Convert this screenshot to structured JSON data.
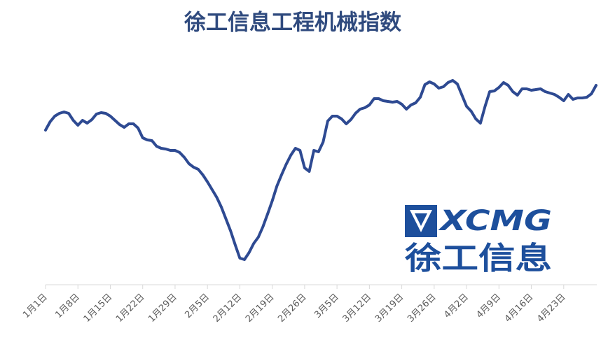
{
  "chart_data": {
    "type": "line",
    "title": "徐工信息工程机械指数",
    "categories": [
      "1月1日",
      null,
      null,
      null,
      null,
      null,
      null,
      "1月8日",
      null,
      null,
      null,
      null,
      null,
      null,
      "1月15日",
      null,
      null,
      null,
      null,
      null,
      null,
      "1月22日",
      null,
      null,
      null,
      null,
      null,
      null,
      "1月29日",
      null,
      null,
      null,
      null,
      null,
      null,
      "2月5日",
      null,
      null,
      null,
      null,
      null,
      null,
      "2月12日",
      null,
      null,
      null,
      null,
      null,
      null,
      "2月19日",
      null,
      null,
      null,
      null,
      null,
      null,
      "2月26日",
      null,
      null,
      null,
      null,
      null,
      null,
      "3月5日",
      null,
      null,
      null,
      null,
      null,
      null,
      "3月12日",
      null,
      null,
      null,
      null,
      null,
      null,
      "3月19日",
      null,
      null,
      null,
      null,
      null,
      null,
      "3月26日",
      null,
      null,
      null,
      null,
      null,
      null,
      "4月2日",
      null,
      null,
      null,
      null,
      null,
      null,
      "4月9日",
      null,
      null,
      null,
      null,
      null,
      null,
      "4月16日",
      null,
      null,
      null,
      null,
      null,
      null,
      "4月23日",
      null,
      null,
      null,
      null,
      null,
      null,
      null
    ],
    "values": [
      221,
      233,
      241,
      245,
      247,
      245,
      235,
      228,
      235,
      231,
      236,
      244,
      246,
      245,
      241,
      235,
      229,
      225,
      230,
      230,
      224,
      210,
      207,
      206,
      198,
      195,
      194,
      192,
      192,
      189,
      182,
      173,
      168,
      165,
      157,
      147,
      136,
      125,
      111,
      94,
      77,
      57,
      38,
      36,
      46,
      59,
      68,
      83,
      101,
      120,
      141,
      157,
      172,
      185,
      195,
      192,
      167,
      162,
      192,
      190,
      204,
      234,
      241,
      241,
      237,
      230,
      236,
      245,
      251,
      253,
      257,
      266,
      266,
      263,
      262,
      261,
      262,
      258,
      251,
      257,
      260,
      268,
      286,
      290,
      287,
      281,
      283,
      289,
      292,
      287,
      271,
      255,
      248,
      237,
      231,
      255,
      276,
      277,
      282,
      289,
      285,
      276,
      271,
      280,
      280,
      278,
      279,
      280,
      276,
      274,
      272,
      268,
      263,
      272,
      265,
      267,
      267,
      268,
      273,
      285
    ],
    "color": "#2e4a92",
    "ylim": [
      0,
      347
    ],
    "grid": false,
    "annotations": [
      "XCMG",
      "徐工信息"
    ]
  }
}
